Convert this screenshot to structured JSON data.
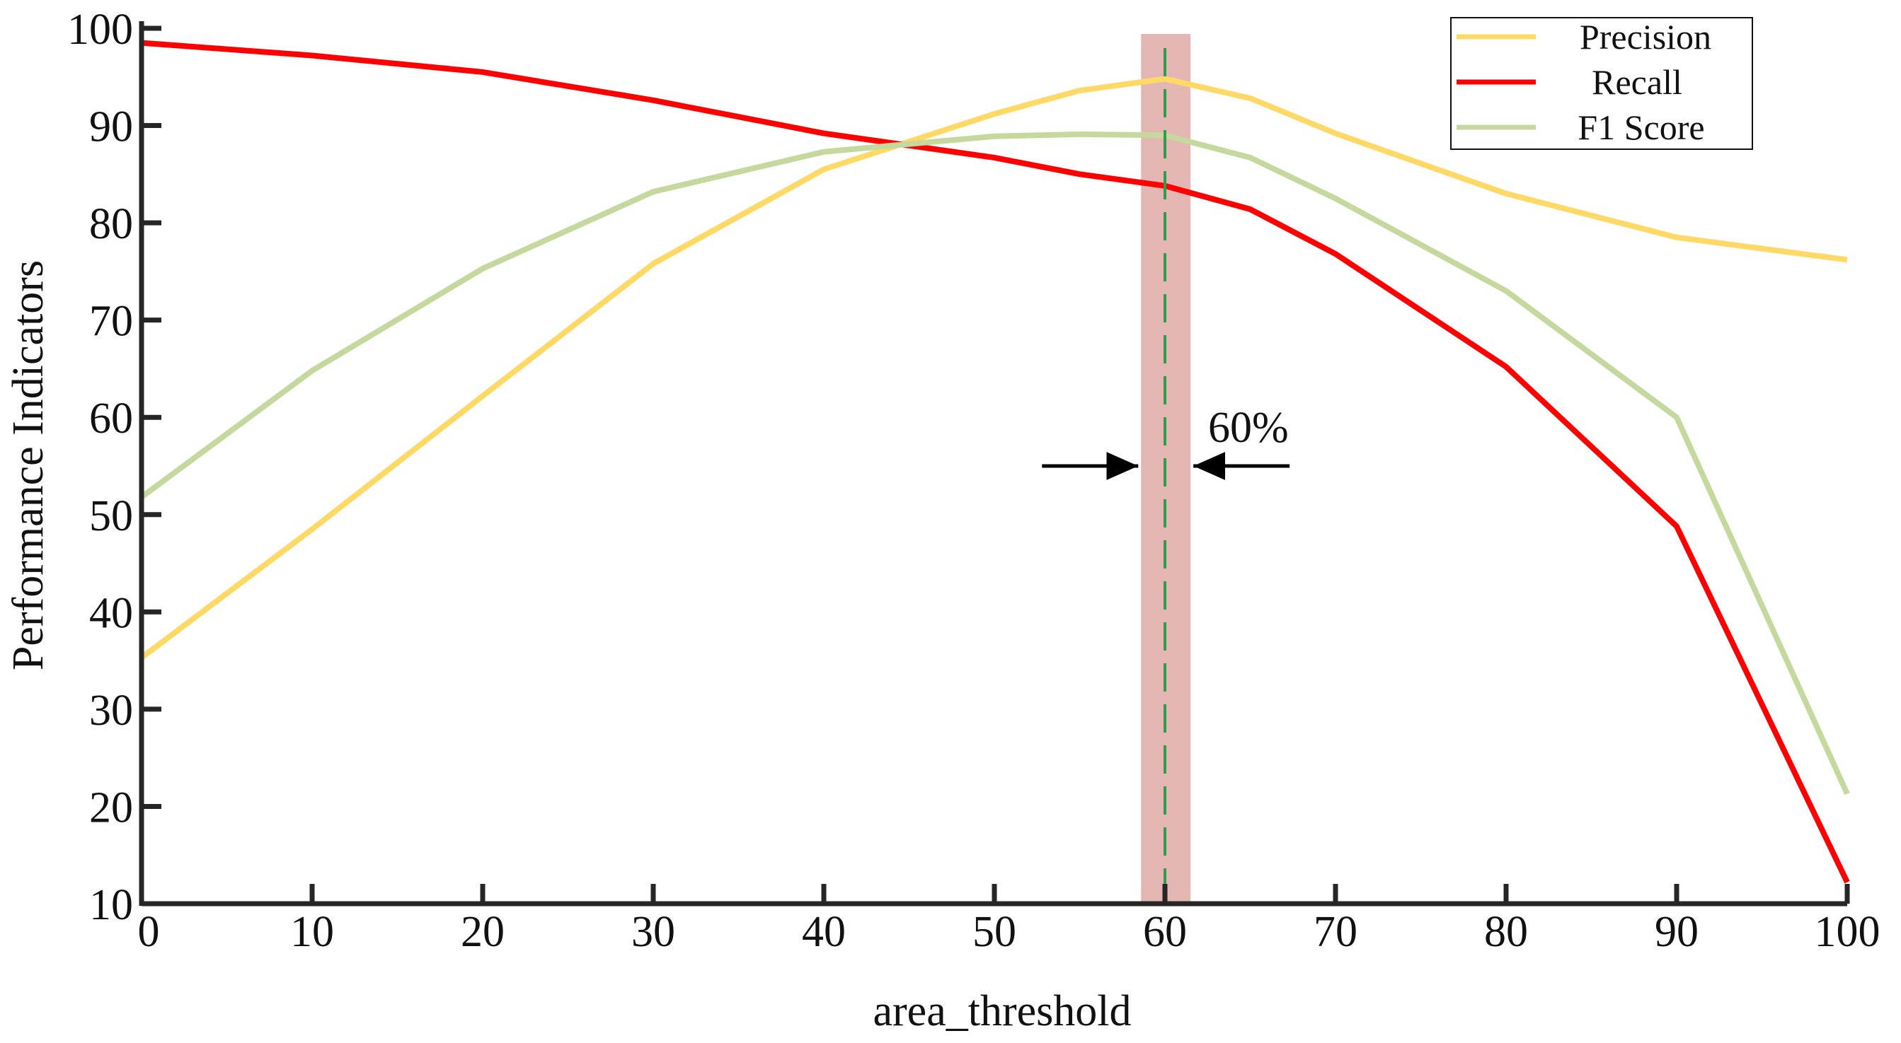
{
  "chart_data": {
    "type": "line",
    "title": "",
    "xlabel": "area_threshold",
    "ylabel": "Performance Indicators",
    "xlim": [
      0,
      100
    ],
    "ylim": [
      10,
      100
    ],
    "x_ticks": [
      0,
      10,
      20,
      30,
      40,
      50,
      60,
      70,
      80,
      90,
      100
    ],
    "y_ticks": [
      10,
      20,
      30,
      40,
      50,
      60,
      70,
      80,
      90,
      100
    ],
    "grid": false,
    "legend_position": "top-right",
    "colors": {
      "precision": "#FFD966",
      "recall": "#FF0000",
      "f1": "#C5D89E",
      "highlight_band": "#E4B6B3",
      "dashed_line": "#2E9E4D",
      "axis": "#262626"
    },
    "series": [
      {
        "key": "precision",
        "name": "Precision",
        "x": [
          0,
          10,
          20,
          30,
          40,
          50,
          55,
          60,
          65,
          70,
          80,
          90,
          100
        ],
        "values": [
          35.3,
          48.5,
          62.2,
          75.8,
          85.5,
          91.2,
          93.6,
          94.8,
          92.8,
          89.2,
          83.0,
          78.5,
          76.2
        ]
      },
      {
        "key": "recall",
        "name": "Recall",
        "x": [
          0,
          10,
          20,
          30,
          40,
          50,
          55,
          60,
          65,
          70,
          80,
          90,
          100
        ],
        "values": [
          98.5,
          97.2,
          95.5,
          92.6,
          89.2,
          86.7,
          85.0,
          83.8,
          81.4,
          76.8,
          65.2,
          48.8,
          12.2
        ]
      },
      {
        "key": "f1",
        "name": "F1 Score",
        "x": [
          0,
          10,
          20,
          30,
          40,
          50,
          55,
          60,
          65,
          70,
          80,
          90,
          100
        ],
        "values": [
          51.8,
          64.8,
          75.3,
          83.2,
          87.3,
          88.9,
          89.1,
          89.0,
          86.7,
          82.5,
          73.0,
          60.0,
          21.3
        ]
      }
    ],
    "annotations": [
      {
        "key": "optimal_threshold",
        "text": "60%",
        "x": 60,
        "band_xmin": 58.6,
        "band_xmax": 61.5,
        "arrow_y": 55
      }
    ]
  }
}
